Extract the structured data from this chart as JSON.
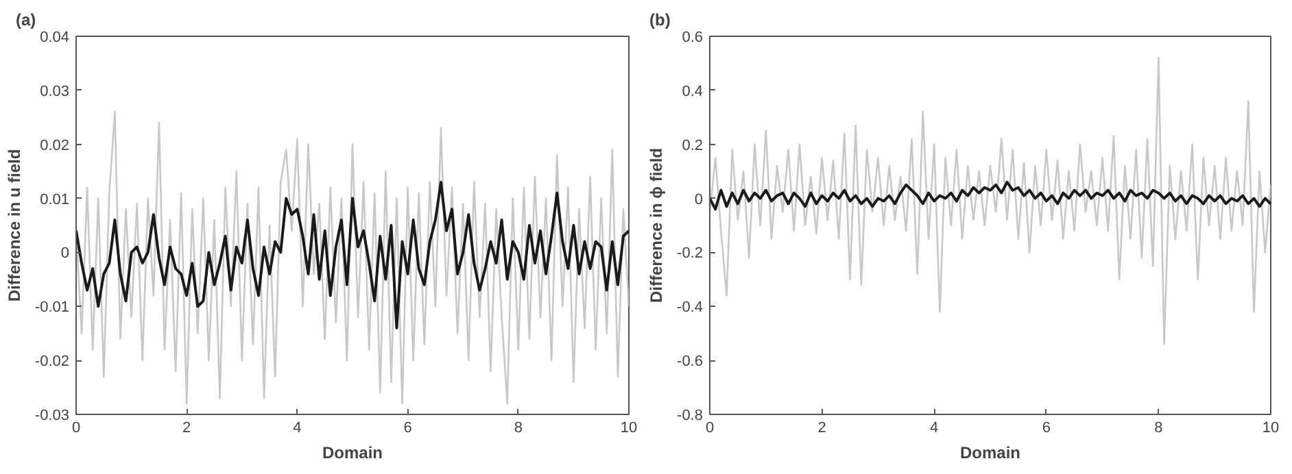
{
  "chart_data": [
    {
      "type": "line",
      "title": "(a)",
      "xlabel": "Domain",
      "ylabel": "Difference in u field",
      "xlim": [
        0,
        10
      ],
      "ylim": [
        -0.03,
        0.04
      ],
      "xticks": [
        0,
        2,
        4,
        6,
        8,
        10
      ],
      "yticks": [
        -0.03,
        -0.02,
        -0.01,
        0,
        0.01,
        0.02,
        0.03,
        0.04
      ],
      "grid": false,
      "x": [
        0,
        0.1,
        0.2,
        0.3,
        0.4,
        0.5,
        0.6,
        0.7,
        0.8,
        0.9,
        1,
        1.1,
        1.2,
        1.3,
        1.4,
        1.5,
        1.6,
        1.7,
        1.8,
        1.9,
        2,
        2.1,
        2.2,
        2.3,
        2.4,
        2.5,
        2.6,
        2.7,
        2.8,
        2.9,
        3,
        3.1,
        3.2,
        3.3,
        3.4,
        3.5,
        3.6,
        3.7,
        3.8,
        3.9,
        4,
        4.1,
        4.2,
        4.3,
        4.4,
        4.5,
        4.6,
        4.7,
        4.8,
        4.9,
        5,
        5.1,
        5.2,
        5.3,
        5.4,
        5.5,
        5.6,
        5.7,
        5.8,
        5.9,
        6,
        6.1,
        6.2,
        6.3,
        6.4,
        6.5,
        6.6,
        6.7,
        6.8,
        6.9,
        7,
        7.1,
        7.2,
        7.3,
        7.4,
        7.5,
        7.6,
        7.7,
        7.8,
        7.9,
        8,
        8.1,
        8.2,
        8.3,
        8.4,
        8.5,
        8.6,
        8.7,
        8.8,
        8.9,
        9,
        9.1,
        9.2,
        9.3,
        9.4,
        9.5,
        9.6,
        9.7,
        9.8,
        9.9,
        10
      ],
      "series": [
        {
          "color": "#c8c8c8",
          "values": [
            0.004,
            -0.015,
            0.012,
            -0.018,
            0.01,
            -0.023,
            0.011,
            0.026,
            -0.016,
            0.008,
            -0.012,
            0.009,
            -0.02,
            0.01,
            -0.008,
            0.024,
            -0.018,
            0.006,
            -0.022,
            0.011,
            -0.028,
            0.008,
            -0.015,
            0.01,
            -0.02,
            0.006,
            -0.027,
            0.012,
            -0.01,
            0.015,
            -0.02,
            0.009,
            -0.017,
            0.012,
            -0.027,
            0.005,
            -0.023,
            0.013,
            0.019,
            0.004,
            0.021,
            -0.01,
            0.02,
            -0.004,
            0.009,
            -0.016,
            0.012,
            -0.013,
            0.01,
            -0.02,
            0.02,
            -0.012,
            0.013,
            -0.018,
            0.011,
            -0.026,
            0.015,
            -0.024,
            0.01,
            -0.028,
            0.012,
            -0.02,
            0.011,
            -0.017,
            0.013,
            -0.01,
            0.023,
            -0.008,
            0.012,
            -0.015,
            0.009,
            -0.02,
            0.013,
            -0.012,
            0.009,
            -0.022,
            0.008,
            -0.012,
            -0.028,
            0.01,
            -0.018,
            0.012,
            -0.016,
            0.014,
            -0.012,
            0.01,
            -0.02,
            0.018,
            -0.01,
            0.012,
            -0.024,
            0.008,
            -0.014,
            0.014,
            -0.018,
            0.01,
            -0.015,
            0.019,
            -0.023,
            0.008,
            -0.01
          ]
        },
        {
          "color": "#1a1a1a",
          "values": [
            0.004,
            -0.002,
            -0.007,
            -0.003,
            -0.01,
            -0.004,
            -0.002,
            0.006,
            -0.004,
            -0.009,
            0,
            0.001,
            -0.002,
            0,
            0.007,
            -0.001,
            -0.006,
            0.001,
            -0.003,
            -0.004,
            -0.008,
            -0.002,
            -0.01,
            -0.009,
            0,
            -0.006,
            -0.002,
            0.003,
            -0.007,
            0.001,
            -0.002,
            0.006,
            -0.003,
            -0.008,
            0.001,
            -0.004,
            0.002,
            0,
            0.01,
            0.007,
            0.008,
            0.003,
            -0.004,
            0.007,
            -0.005,
            0.004,
            -0.008,
            0.001,
            0.006,
            -0.006,
            0.01,
            0.001,
            0.004,
            -0.002,
            -0.009,
            0.003,
            -0.005,
            0.005,
            -0.014,
            0.002,
            -0.004,
            0.006,
            -0.003,
            -0.006,
            0.002,
            0.006,
            0.013,
            0.004,
            0.008,
            -0.004,
            0,
            0.007,
            -0.002,
            -0.007,
            -0.003,
            0.002,
            -0.002,
            0.006,
            -0.005,
            0.002,
            0,
            -0.005,
            0.005,
            -0.002,
            0.004,
            -0.004,
            0.003,
            0.011,
            0.002,
            -0.003,
            0.005,
            -0.004,
            0.002,
            -0.003,
            0.002,
            0.001,
            -0.007,
            0.002,
            -0.006,
            0.003,
            0.004
          ]
        }
      ]
    },
    {
      "type": "line",
      "title": "(b)",
      "xlabel": "Domain",
      "ylabel": "Difference in ϕ field",
      "xlim": [
        0,
        10
      ],
      "ylim": [
        -0.8,
        0.6
      ],
      "xticks": [
        0,
        2,
        4,
        6,
        8,
        10
      ],
      "yticks": [
        -0.8,
        -0.6,
        -0.4,
        -0.2,
        0,
        0.2,
        0.4,
        0.6
      ],
      "grid": false,
      "x": [
        0,
        0.1,
        0.2,
        0.3,
        0.4,
        0.5,
        0.6,
        0.7,
        0.8,
        0.9,
        1,
        1.1,
        1.2,
        1.3,
        1.4,
        1.5,
        1.6,
        1.7,
        1.8,
        1.9,
        2,
        2.1,
        2.2,
        2.3,
        2.4,
        2.5,
        2.6,
        2.7,
        2.8,
        2.9,
        3,
        3.1,
        3.2,
        3.3,
        3.4,
        3.5,
        3.6,
        3.7,
        3.8,
        3.9,
        4,
        4.1,
        4.2,
        4.3,
        4.4,
        4.5,
        4.6,
        4.7,
        4.8,
        4.9,
        5,
        5.1,
        5.2,
        5.3,
        5.4,
        5.5,
        5.6,
        5.7,
        5.8,
        5.9,
        6,
        6.1,
        6.2,
        6.3,
        6.4,
        6.5,
        6.6,
        6.7,
        6.8,
        6.9,
        7,
        7.1,
        7.2,
        7.3,
        7.4,
        7.5,
        7.6,
        7.7,
        7.8,
        7.9,
        8,
        8.1,
        8.2,
        8.3,
        8.4,
        8.5,
        8.6,
        8.7,
        8.8,
        8.9,
        9,
        9.1,
        9.2,
        9.3,
        9.4,
        9.5,
        9.6,
        9.7,
        9.8,
        9.9,
        10
      ],
      "series": [
        {
          "color": "#c8c8c8",
          "values": [
            -0.05,
            0.15,
            -0.12,
            -0.36,
            0.18,
            -0.08,
            0.1,
            -0.22,
            0.2,
            -0.1,
            0.25,
            -0.15,
            0.12,
            -0.05,
            0.18,
            -0.12,
            0.2,
            -0.1,
            0.08,
            -0.13,
            0.15,
            -0.08,
            0.14,
            -0.15,
            0.24,
            -0.3,
            0.27,
            -0.32,
            0.18,
            -0.05,
            0.15,
            -0.1,
            0.12,
            -0.08,
            0.08,
            -0.12,
            0.22,
            -0.28,
            0.32,
            -0.15,
            0.2,
            -0.42,
            0.15,
            -0.1,
            0.18,
            -0.15,
            0.12,
            -0.08,
            0.1,
            -0.1,
            0.12,
            -0.05,
            0.22,
            -0.08,
            0.18,
            -0.15,
            0.13,
            -0.2,
            0.12,
            -0.1,
            0.18,
            -0.08,
            0.14,
            -0.15,
            0.1,
            -0.12,
            0.2,
            -0.05,
            0.1,
            -0.1,
            0.15,
            -0.12,
            0.23,
            -0.3,
            0.12,
            -0.15,
            0.18,
            -0.22,
            0.22,
            -0.25,
            0.52,
            -0.54,
            0.12,
            -0.15,
            0.1,
            -0.12,
            0.2,
            -0.3,
            0.15,
            -0.1,
            0.12,
            -0.15,
            0.15,
            -0.12,
            0.1,
            -0.1,
            0.36,
            -0.42,
            0.1,
            -0.2,
            0.05
          ]
        },
        {
          "color": "#1a1a1a",
          "values": [
            0,
            -0.04,
            0.03,
            -0.03,
            0.02,
            -0.02,
            0.03,
            -0.01,
            0.02,
            0,
            0.03,
            -0.01,
            0.01,
            0.02,
            -0.02,
            0.02,
            0,
            -0.03,
            0.02,
            -0.02,
            0.01,
            -0.01,
            0.02,
            0,
            0.03,
            -0.01,
            0.01,
            -0.02,
            0,
            -0.03,
            0,
            -0.01,
            0.01,
            -0.02,
            0.02,
            0.05,
            0.03,
            0.01,
            -0.02,
            0.02,
            -0.01,
            0.01,
            0,
            0.02,
            -0.01,
            0.03,
            0.01,
            0.04,
            0.02,
            0.04,
            0.03,
            0.05,
            0.02,
            0.06,
            0.03,
            0.04,
            0.01,
            0.03,
            0,
            0.02,
            -0.01,
            0.01,
            -0.02,
            0.02,
            0,
            0.03,
            0.01,
            0.03,
            0,
            0.02,
            0.01,
            0.03,
            0,
            0.02,
            -0.01,
            0.03,
            0.01,
            0.02,
            0,
            0.03,
            0.02,
            0,
            0.02,
            -0.01,
            0.01,
            -0.02,
            0.01,
            0,
            -0.02,
            0.01,
            -0.01,
            0.01,
            -0.02,
            0,
            -0.01,
            0.01,
            -0.02,
            0,
            -0.03,
            0,
            -0.02
          ]
        }
      ]
    }
  ]
}
